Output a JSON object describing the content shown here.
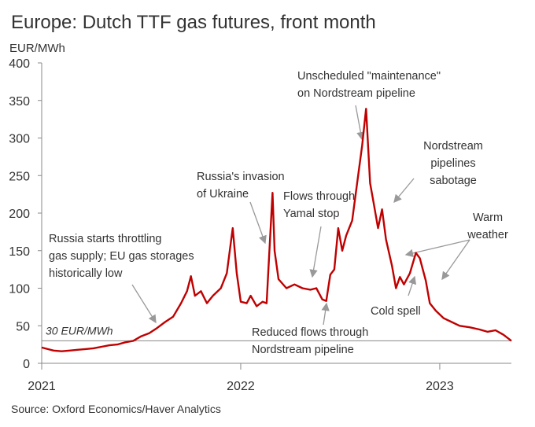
{
  "chart_data": {
    "type": "line",
    "title": "Europe: Dutch TTF gas futures, front month",
    "y_label": "EUR/MWh",
    "source": "Source: Oxford Economics/Haver Analytics",
    "xlim": [
      2021,
      2023.36
    ],
    "xticks": [
      2021,
      2022,
      2023
    ],
    "ylim": [
      0,
      400
    ],
    "yticks": [
      0,
      50,
      100,
      150,
      200,
      250,
      300,
      350,
      400
    ],
    "hline": {
      "value": 30,
      "label": "30 EUR/MWh"
    },
    "annotations": [
      [
        "Russia starts throttling",
        "gas supply; EU gas storages",
        "historically low"
      ],
      [
        "Russia's invasion",
        "of Ukraine"
      ],
      [
        "Flows through",
        "Yamal stop"
      ],
      [
        "Unscheduled \"maintenance\"",
        "on Nordstream pipeline"
      ],
      [
        "Nordstream",
        "pipelines",
        "sabotage"
      ],
      [
        "Warm",
        "weather"
      ],
      [
        "Cold spell"
      ],
      [
        "Reduced flows through",
        "Nordstream pipeline"
      ]
    ],
    "series": [
      {
        "color": "#c00000",
        "x": [
          2021.0,
          2021.03,
          2021.06,
          2021.1,
          2021.14,
          2021.18,
          2021.22,
          2021.26,
          2021.3,
          2021.34,
          2021.38,
          2021.42,
          2021.46,
          2021.5,
          2021.54,
          2021.58,
          2021.62,
          2021.66,
          2021.7,
          2021.73,
          2021.75,
          2021.77,
          2021.8,
          2021.83,
          2021.86,
          2021.9,
          2021.93,
          2021.96,
          2021.98,
          2022.0,
          2022.03,
          2022.05,
          2022.08,
          2022.11,
          2022.13,
          2022.14,
          2022.16,
          2022.17,
          2022.19,
          2022.23,
          2022.27,
          2022.31,
          2022.35,
          2022.38,
          2022.41,
          2022.43,
          2022.45,
          2022.47,
          2022.49,
          2022.51,
          2022.53,
          2022.56,
          2022.59,
          2022.61,
          2022.63,
          2022.65,
          2022.67,
          2022.69,
          2022.71,
          2022.73,
          2022.76,
          2022.78,
          2022.8,
          2022.82,
          2022.85,
          2022.88,
          2022.9,
          2022.93,
          2022.95,
          2022.98,
          2023.02,
          2023.06,
          2023.1,
          2023.15,
          2023.2,
          2023.24,
          2023.28,
          2023.32,
          2023.36
        ],
        "values": [
          21,
          19,
          17,
          16,
          17,
          18,
          19,
          20,
          22,
          24,
          25,
          28,
          30,
          36,
          40,
          47,
          55,
          62,
          80,
          96,
          116,
          90,
          96,
          80,
          90,
          100,
          120,
          180,
          120,
          82,
          80,
          90,
          76,
          82,
          80,
          130,
          227,
          150,
          112,
          100,
          105,
          100,
          98,
          100,
          85,
          83,
          118,
          125,
          180,
          150,
          170,
          190,
          250,
          290,
          339,
          240,
          210,
          180,
          205,
          165,
          130,
          100,
          115,
          105,
          120,
          147,
          140,
          110,
          80,
          70,
          60,
          55,
          50,
          48,
          45,
          42,
          44,
          38,
          30
        ]
      }
    ]
  }
}
